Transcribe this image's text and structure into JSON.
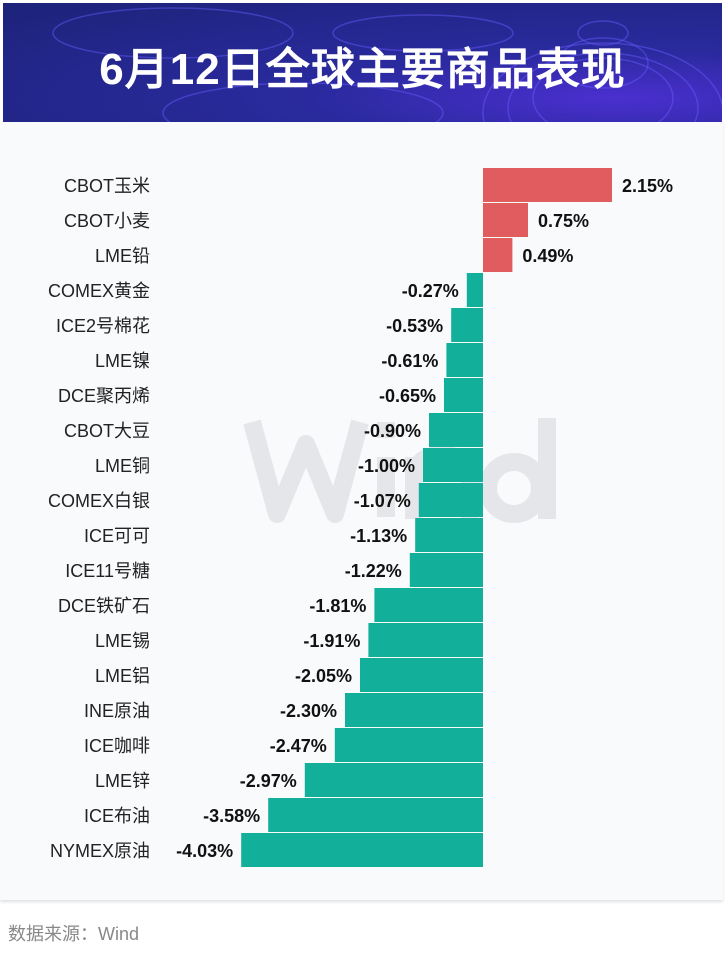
{
  "header": {
    "title": "6月12日全球主要商品表现"
  },
  "watermark": "Wind",
  "footer": {
    "source": "数据来源：Wind"
  },
  "colors": {
    "positive": "#e05c5f",
    "negative": "#12b09b",
    "header_bg": "#1e2580"
  },
  "chart_data": {
    "type": "bar",
    "orientation": "horizontal",
    "categories": [
      "CBOT玉米",
      "CBOT小麦",
      "LME铅",
      "COMEX黄金",
      "ICE2号棉花",
      "LME镍",
      "DCE聚丙烯",
      "CBOT大豆",
      "LME铜",
      "COMEX白银",
      "ICE可可",
      "ICE11号糖",
      "DCE铁矿石",
      "LME锡",
      "LME铝",
      "INE原油",
      "ICE咖啡",
      "LME锌",
      "ICE布油",
      "NYMEX原油"
    ],
    "values": [
      2.15,
      0.75,
      0.49,
      -0.27,
      -0.53,
      -0.61,
      -0.65,
      -0.9,
      -1.0,
      -1.07,
      -1.13,
      -1.22,
      -1.81,
      -1.91,
      -2.05,
      -2.3,
      -2.47,
      -2.97,
      -3.58,
      -4.03
    ],
    "labels": [
      "2.15%",
      "0.75%",
      "0.49%",
      "-0.27%",
      "-0.53%",
      "-0.61%",
      "-0.65%",
      "-0.90%",
      "-1.00%",
      "-1.07%",
      "-1.13%",
      "-1.22%",
      "-1.81%",
      "-1.91%",
      "-2.05%",
      "-2.30%",
      "-2.47%",
      "-2.97%",
      "-3.58%",
      "-4.03%"
    ],
    "unit": "%",
    "grid": false,
    "legend": "none"
  }
}
